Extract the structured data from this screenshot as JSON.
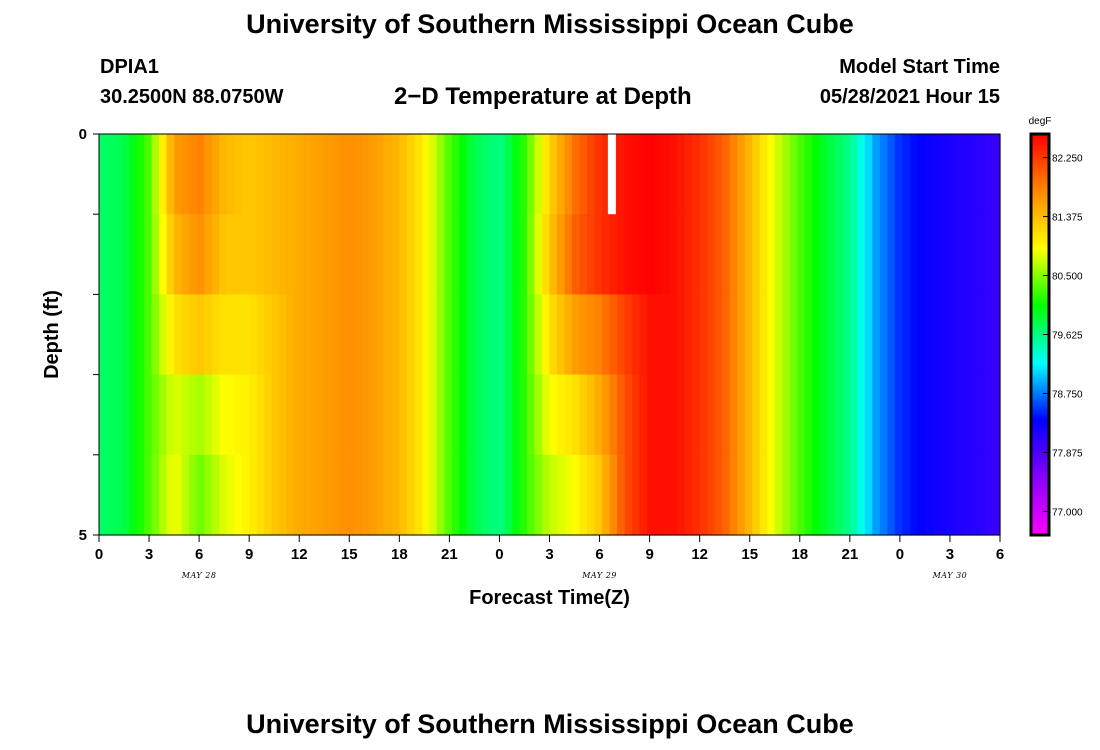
{
  "header": {
    "title_top": "University of Southern Mississippi Ocean Cube",
    "station_id": "DPIA1",
    "station_coords": "30.2500N  88.0750W",
    "plot_title": "2−D Temperature at Depth",
    "model_start_label": "Model Start Time",
    "model_start_value": "05/28/2021 Hour 15"
  },
  "footer": {
    "title_bottom": "University of Southern Mississippi Ocean Cube"
  },
  "chart_data": {
    "type": "heatmap",
    "xlabel": "Forecast Time(Z)",
    "ylabel": "Depth (ft)",
    "x_tick_labels": [
      "0",
      "3",
      "6",
      "9",
      "12",
      "15",
      "18",
      "21",
      "0",
      "3",
      "6",
      "9",
      "12",
      "15",
      "18",
      "21",
      "0",
      "3",
      "6"
    ],
    "x_dates": [
      {
        "label": "MAY 28",
        "tick_index": 2
      },
      {
        "label": "MAY 29",
        "tick_index": 10
      },
      {
        "label": "MAY 30",
        "tick_index": 17
      }
    ],
    "y_tick_labels": [
      "0",
      "5"
    ],
    "ylim": [
      0,
      5
    ],
    "colorbar": {
      "unit": "degF",
      "range": [
        76.65,
        82.6
      ],
      "ticks": [
        "82.250",
        "81.375",
        "80.500",
        "79.625",
        "78.750",
        "77.875",
        "77.000"
      ],
      "colors": [
        "#ff00ff",
        "#8800ff",
        "#0000ff",
        "#00ffff",
        "#00ff00",
        "#ffff00",
        "#ff8800",
        "#ff0000"
      ]
    },
    "forecast_hours_start": 0,
    "forecast_hours_end": 54,
    "depth_layer_temperatures_degF": [
      [
        79.7,
        79.8,
        80.3,
        81.6,
        81.8,
        81.4,
        81.3,
        81.4,
        81.5,
        81.6,
        81.7,
        81.6,
        81.4,
        81.0,
        80.3,
        79.8,
        79.6,
        80.2,
        81.2,
        81.9,
        82.3,
        82.5,
        82.6,
        82.5,
        82.3,
        82.0,
        81.4,
        80.8,
        80.3,
        79.9,
        79.6,
        78.9,
        78.5,
        78.3,
        78.2,
        78.1,
        78.0
      ],
      [
        79.7,
        79.8,
        80.3,
        81.4,
        81.7,
        81.3,
        81.3,
        81.4,
        81.5,
        81.6,
        81.7,
        81.6,
        81.4,
        81.0,
        80.3,
        79.8,
        79.6,
        80.2,
        81.3,
        82.0,
        82.3,
        82.5,
        82.6,
        82.5,
        82.3,
        82.0,
        81.4,
        80.8,
        80.3,
        79.9,
        79.6,
        78.9,
        78.5,
        78.3,
        78.2,
        78.1,
        78.0
      ],
      [
        79.7,
        79.8,
        80.3,
        81.1,
        81.3,
        81.1,
        81.1,
        81.3,
        81.5,
        81.6,
        81.7,
        81.6,
        81.4,
        81.0,
        80.3,
        79.8,
        79.6,
        80.2,
        81.1,
        81.6,
        81.8,
        82.2,
        82.5,
        82.5,
        82.3,
        82.0,
        81.4,
        80.8,
        80.3,
        79.9,
        79.6,
        78.9,
        78.5,
        78.3,
        78.2,
        78.1,
        78.0
      ],
      [
        79.7,
        79.8,
        80.3,
        80.8,
        80.6,
        80.9,
        81.0,
        81.3,
        81.5,
        81.6,
        81.7,
        81.6,
        81.4,
        81.0,
        80.3,
        79.8,
        79.6,
        80.2,
        80.9,
        81.1,
        81.5,
        82.1,
        82.5,
        82.5,
        82.3,
        82.0,
        81.4,
        80.8,
        80.3,
        79.9,
        79.6,
        78.9,
        78.5,
        78.3,
        78.2,
        78.1,
        78.0
      ],
      [
        79.7,
        79.8,
        80.3,
        80.9,
        80.4,
        80.8,
        81.0,
        81.3,
        81.5,
        81.6,
        81.7,
        81.6,
        81.4,
        81.0,
        80.3,
        79.8,
        79.6,
        80.2,
        80.7,
        80.9,
        81.3,
        82.1,
        82.5,
        82.5,
        82.3,
        82.0,
        81.4,
        80.8,
        80.3,
        79.9,
        79.6,
        78.9,
        78.5,
        78.3,
        78.2,
        78.1,
        78.0
      ]
    ]
  }
}
